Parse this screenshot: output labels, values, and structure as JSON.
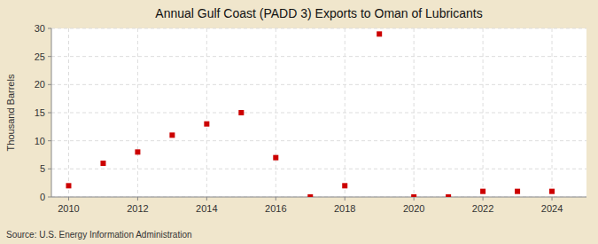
{
  "chart_data": {
    "type": "scatter",
    "title": "Annual Gulf Coast (PADD 3) Exports to Oman of Lubricants",
    "y_label": "Thousand Barrels",
    "source": "Source: U.S. Energy Information Administration",
    "x": [
      2010,
      2011,
      2012,
      2013,
      2014,
      2015,
      2016,
      2017,
      2018,
      2019,
      2020,
      2021,
      2022,
      2023,
      2024
    ],
    "values": [
      2,
      6,
      8,
      11,
      13,
      15,
      7,
      0,
      2,
      29,
      0,
      0,
      1,
      1,
      1
    ],
    "color": "#cc0000",
    "marker": "square",
    "xlim": [
      2009.5,
      2025.0
    ],
    "ylim": [
      0,
      30
    ],
    "xticks": [
      2010,
      2012,
      2014,
      2016,
      2018,
      2020,
      2022,
      2024
    ],
    "yticks": [
      0,
      5,
      10,
      15,
      20,
      25,
      30
    ],
    "grid": true
  }
}
